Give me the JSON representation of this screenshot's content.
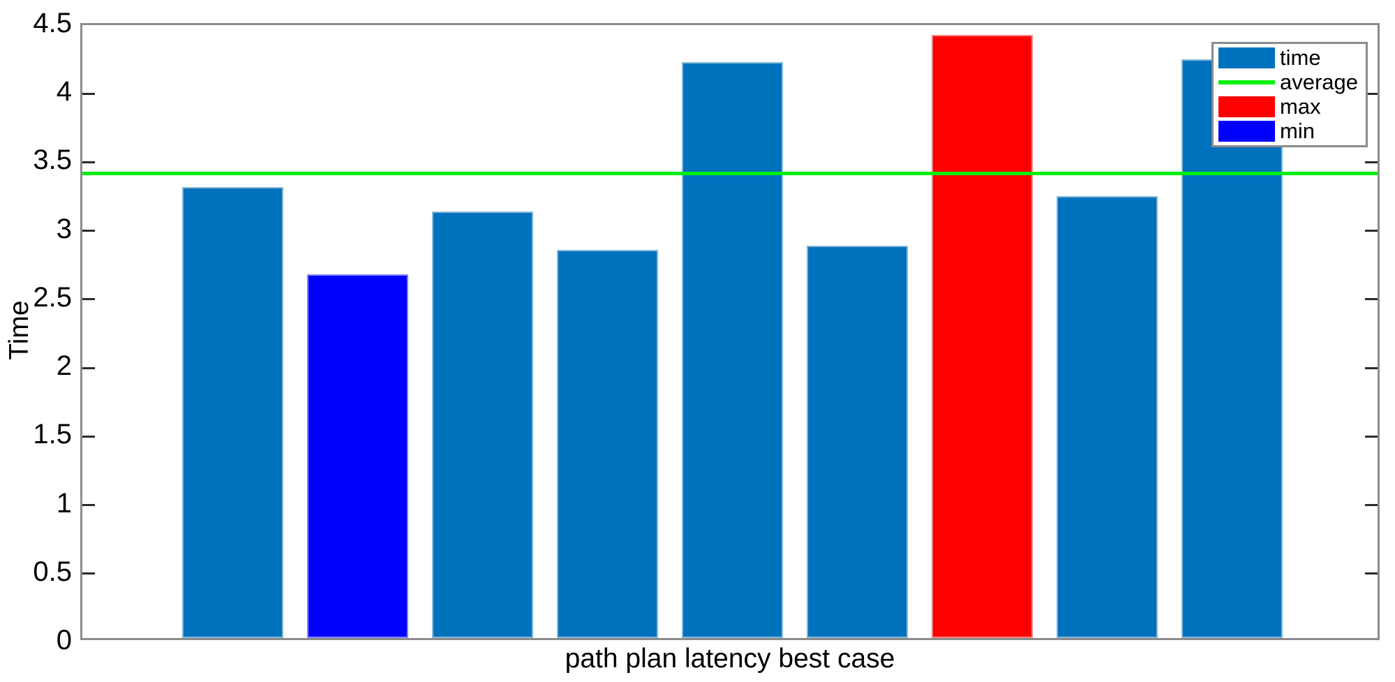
{
  "chart_data": {
    "type": "bar",
    "title": "",
    "xlabel": "path plan latency best case",
    "ylabel": "Time",
    "ylim": [
      0,
      4.5
    ],
    "ytick_step": 0.5,
    "ytick_labels": [
      "0",
      "0.5",
      "1",
      "1.5",
      "2",
      "2.5",
      "3",
      "3.5",
      "4",
      "4.5"
    ],
    "series_name": "time",
    "values": [
      3.29,
      2.65,
      3.11,
      2.83,
      4.2,
      2.86,
      4.4,
      3.22,
      4.22
    ],
    "bar_roles": [
      "time",
      "min",
      "time",
      "time",
      "time",
      "time",
      "max",
      "time",
      "time"
    ],
    "average": 3.42,
    "grid": false,
    "legend_position": "top-right",
    "legend": [
      {
        "label": "time",
        "type": "patch",
        "color_key": "time"
      },
      {
        "label": "average",
        "type": "line",
        "color_key": "average"
      },
      {
        "label": "max",
        "type": "patch",
        "color_key": "max"
      },
      {
        "label": "min",
        "type": "patch",
        "color_key": "min"
      }
    ],
    "colors": {
      "time": "#0072BD",
      "average": "#00F00A",
      "max": "#FF0000",
      "min": "#0000FF",
      "axis_box": "#8c8c8c",
      "tick": "#2b2b2b",
      "text": "#000000"
    }
  }
}
